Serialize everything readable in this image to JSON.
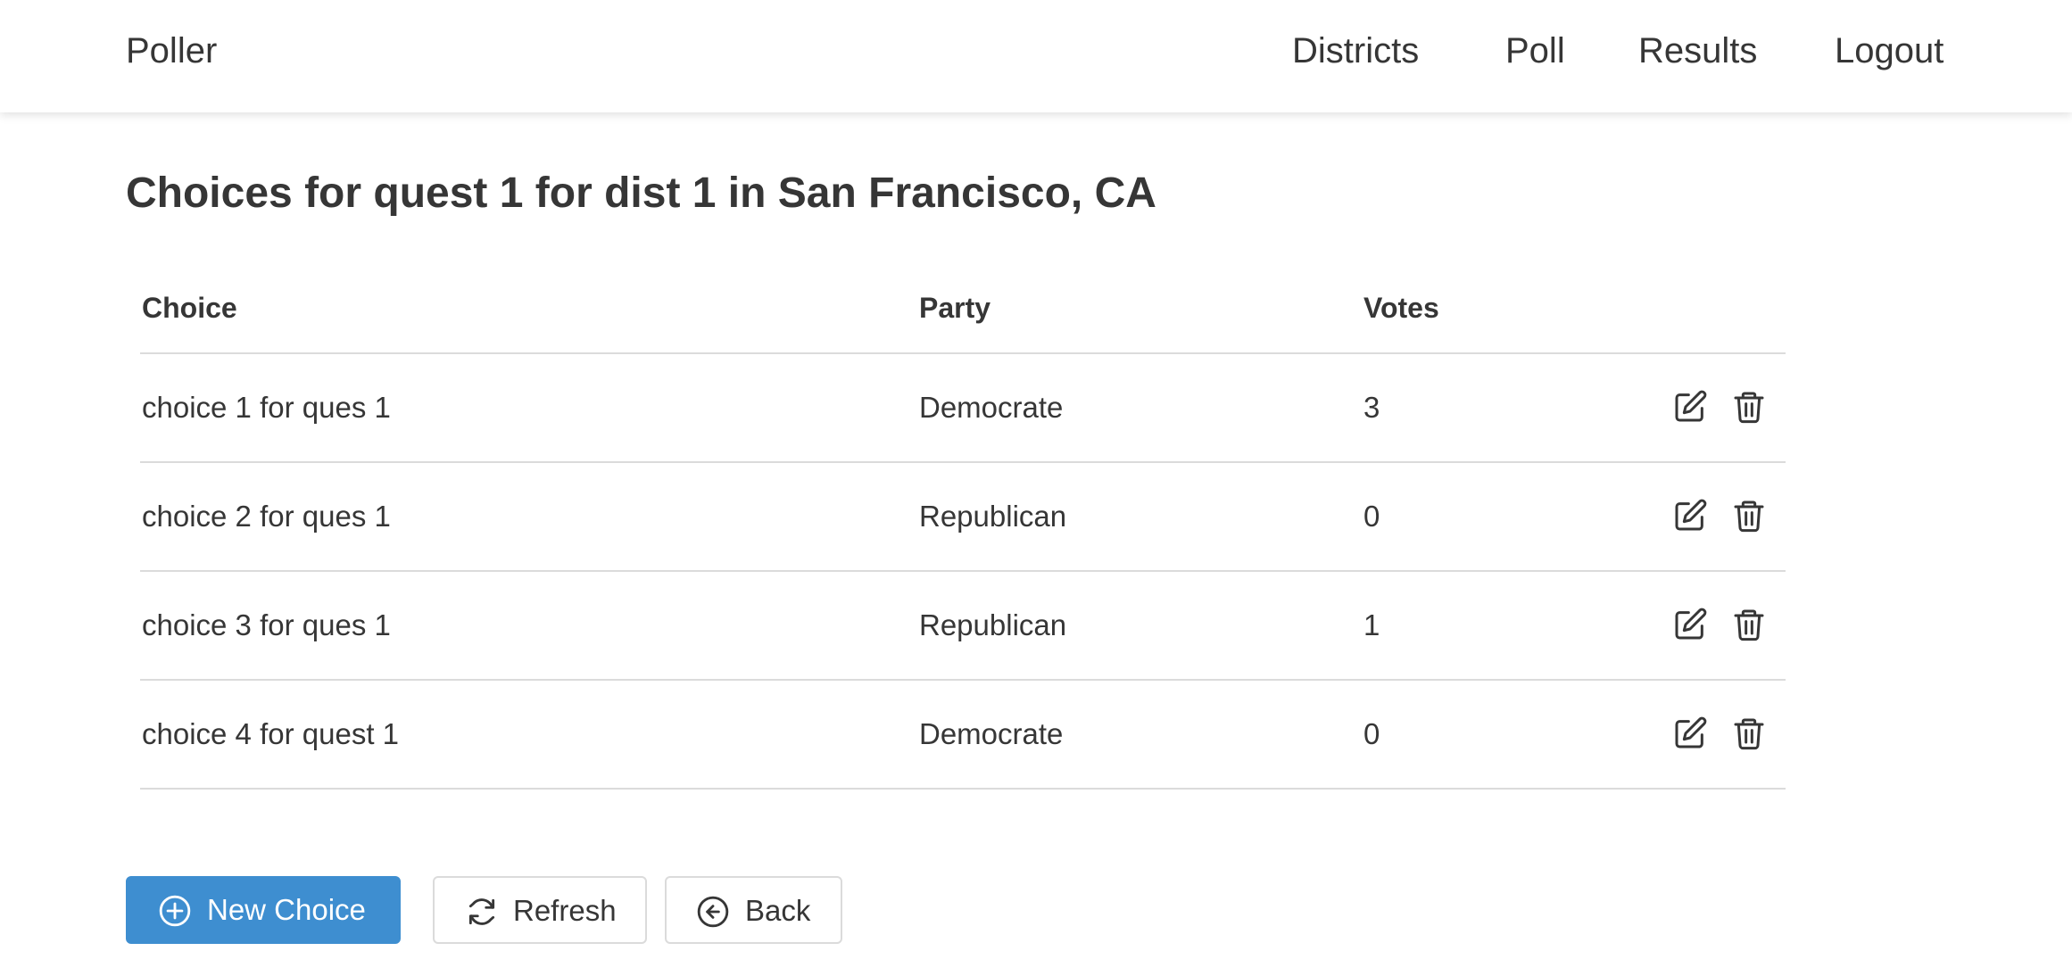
{
  "navbar": {
    "brand": "Poller",
    "items": [
      {
        "label": "Districts"
      },
      {
        "label": "Poll"
      },
      {
        "label": "Results"
      },
      {
        "label": "Logout"
      }
    ]
  },
  "page": {
    "title": "Choices for quest 1 for dist 1 in San Francisco, CA"
  },
  "table": {
    "headers": {
      "choice": "Choice",
      "party": "Party",
      "votes": "Votes"
    },
    "rows": [
      {
        "choice": "choice 1 for ques 1",
        "party": "Democrate",
        "votes": "3"
      },
      {
        "choice": "choice 2 for ques 1",
        "party": "Republican",
        "votes": "0"
      },
      {
        "choice": "choice 3 for ques 1",
        "party": "Republican",
        "votes": "1"
      },
      {
        "choice": "choice 4 for quest 1",
        "party": "Democrate",
        "votes": "0"
      }
    ],
    "row_actions": [
      {
        "icon": "edit-icon"
      },
      {
        "icon": "trash-icon"
      }
    ]
  },
  "actions": {
    "new_choice": {
      "label": "New Choice",
      "icon": "plus-circle-icon"
    },
    "refresh": {
      "label": "Refresh",
      "icon": "refresh-icon"
    },
    "back": {
      "label": "Back",
      "icon": "arrow-left-circle-icon"
    }
  },
  "colors": {
    "primary": "#3e8ed0",
    "text": "#363636",
    "border": "#dbdbdb",
    "background": "#ffffff"
  }
}
